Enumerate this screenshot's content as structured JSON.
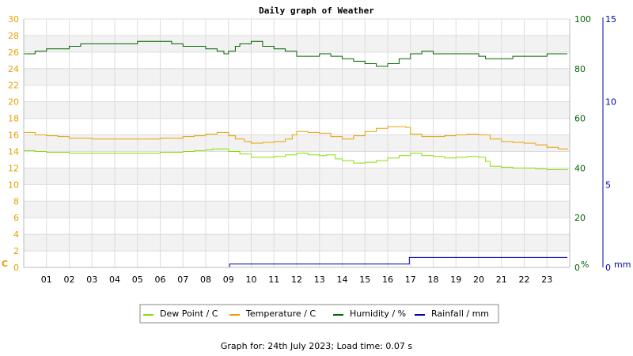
{
  "chart_data": {
    "type": "line",
    "title": "Daily graph of Weather",
    "x_ticks": [
      "01",
      "02",
      "03",
      "04",
      "05",
      "06",
      "07",
      "08",
      "09",
      "10",
      "11",
      "12",
      "13",
      "14",
      "15",
      "16",
      "17",
      "18",
      "19",
      "20",
      "21",
      "22",
      "23"
    ],
    "xlim": [
      0,
      24
    ],
    "axes": {
      "left": {
        "unit": "C",
        "ylim": [
          0,
          30
        ],
        "ticks": [
          "0",
          "2",
          "4",
          "6",
          "8",
          "10",
          "12",
          "14",
          "16",
          "18",
          "20",
          "22",
          "24",
          "26",
          "28",
          "30"
        ],
        "color": "#e8a000"
      },
      "humidity": {
        "unit": "%",
        "ylim": [
          0,
          100
        ],
        "ticks": [
          "0",
          "20",
          "40",
          "60",
          "80",
          "100"
        ],
        "color": "#006400"
      },
      "rainfall": {
        "unit": "mm",
        "ylim": [
          0,
          15
        ],
        "ticks": [
          "0",
          "5",
          "10",
          "15"
        ],
        "color": "#0000b0"
      }
    },
    "grid": true,
    "legend_position": "bottom-center",
    "series": [
      {
        "name": "Dew Point / C",
        "axis": "left",
        "color": "#88e000",
        "x": [
          0,
          0.5,
          1,
          1.5,
          2,
          3,
          4,
          5,
          6,
          7,
          7.5,
          8,
          8.3,
          9,
          9.5,
          10,
          11,
          11.5,
          12,
          12.5,
          13,
          13.3,
          13.7,
          14,
          14.5,
          15,
          15.5,
          16,
          16.5,
          17,
          17.5,
          18,
          18.5,
          19,
          19.5,
          20,
          20.3,
          20.5,
          21,
          21.5,
          22,
          22.5,
          23,
          23.5,
          23.9
        ],
        "y": [
          14.1,
          14.0,
          13.9,
          13.9,
          13.8,
          13.8,
          13.8,
          13.8,
          13.9,
          14.0,
          14.1,
          14.2,
          14.3,
          14.0,
          13.7,
          13.3,
          13.4,
          13.6,
          13.8,
          13.6,
          13.5,
          13.6,
          13.1,
          12.9,
          12.6,
          12.7,
          12.9,
          13.2,
          13.5,
          13.8,
          13.5,
          13.4,
          13.2,
          13.3,
          13.4,
          13.3,
          12.8,
          12.2,
          12.1,
          12.0,
          12.0,
          11.9,
          11.8,
          11.8,
          11.9
        ]
      },
      {
        "name": "Temperature / C",
        "axis": "left",
        "color": "#e8a000",
        "x": [
          0,
          0.5,
          1,
          1.5,
          2,
          3,
          4,
          5,
          6,
          7,
          7.5,
          8,
          8.5,
          9,
          9.3,
          9.7,
          10,
          10.5,
          11,
          11.5,
          11.8,
          12,
          12.5,
          13,
          13.5,
          14,
          14.5,
          15,
          15.5,
          16,
          16.5,
          16.8,
          17,
          17.5,
          18,
          18.5,
          19,
          19.5,
          20,
          20.5,
          21,
          21.5,
          22,
          22.5,
          23,
          23.5,
          23.9
        ],
        "y": [
          16.3,
          16.0,
          15.9,
          15.8,
          15.6,
          15.5,
          15.5,
          15.5,
          15.6,
          15.8,
          15.9,
          16.1,
          16.3,
          15.9,
          15.5,
          15.2,
          15.0,
          15.1,
          15.2,
          15.5,
          16.0,
          16.4,
          16.3,
          16.2,
          15.8,
          15.5,
          15.9,
          16.4,
          16.8,
          17.0,
          17.0,
          16.9,
          16.1,
          15.8,
          15.8,
          15.9,
          16.0,
          16.1,
          16.0,
          15.5,
          15.2,
          15.1,
          15.0,
          14.8,
          14.5,
          14.3,
          14.2
        ]
      },
      {
        "name": "Humidity / %",
        "axis": "humidity",
        "color": "#006400",
        "x": [
          0,
          0.5,
          1,
          2,
          2.5,
          3,
          4,
          4.5,
          5,
          5.5,
          6,
          6.5,
          7,
          7.5,
          8,
          8.5,
          8.8,
          9,
          9.3,
          9.5,
          10,
          10.3,
          10.5,
          11,
          11.3,
          11.5,
          12,
          12.5,
          13,
          13.5,
          14,
          14.5,
          15,
          15.5,
          16,
          16.5,
          17,
          17.5,
          18,
          18.5,
          19,
          19.5,
          20,
          20.3,
          20.5,
          21,
          21.5,
          22,
          22.5,
          23,
          23.5,
          23.9
        ],
        "y": [
          86,
          87,
          88,
          89,
          90,
          90,
          90,
          90,
          91,
          91,
          91,
          90,
          89,
          89,
          88,
          87,
          86,
          87,
          89,
          90,
          91,
          91,
          89,
          88,
          88,
          87,
          85,
          85,
          86,
          85,
          84,
          83,
          82,
          81,
          82,
          84,
          86,
          87,
          86,
          86,
          86,
          86,
          85,
          84,
          84,
          84,
          85,
          85,
          85,
          86,
          86,
          86
        ]
      },
      {
        "name": "Rainfall / mm",
        "axis": "rainfall",
        "color": "#0000b0",
        "x": [
          0,
          9.05,
          9.05,
          16.95,
          16.95,
          23.9
        ],
        "y": [
          0,
          0,
          0.2,
          0.2,
          0.6,
          0.6
        ]
      }
    ]
  },
  "footer": "Graph for: 24th July 2023; Load time: 0.07 s"
}
